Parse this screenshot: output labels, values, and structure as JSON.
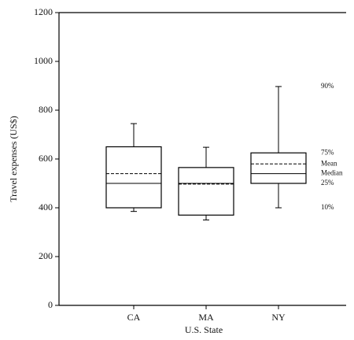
{
  "chart_data": {
    "type": "box",
    "x_label": "U.S. State",
    "y_label": "Travel expenses (US$)",
    "categories": [
      "CA",
      "MA",
      "NY"
    ],
    "boxes": {
      "whislo": [
        385,
        350,
        400
      ],
      "q1": [
        400,
        370,
        500
      ],
      "median": [
        500,
        500,
        540
      ],
      "mean": [
        540,
        497,
        580
      ],
      "q3": [
        650,
        565,
        625
      ],
      "whishi": [
        745,
        648,
        897
      ]
    },
    "annotations": {
      "whishi": "90%",
      "q3": "75%",
      "mean": "Mean",
      "median": "Median",
      "q1": "25%",
      "whislo": "10%"
    },
    "color": "#000000",
    "ylim": [
      0,
      1200
    ],
    "yticks": [
      0,
      200,
      400,
      600,
      800,
      1000,
      1200
    ]
  }
}
